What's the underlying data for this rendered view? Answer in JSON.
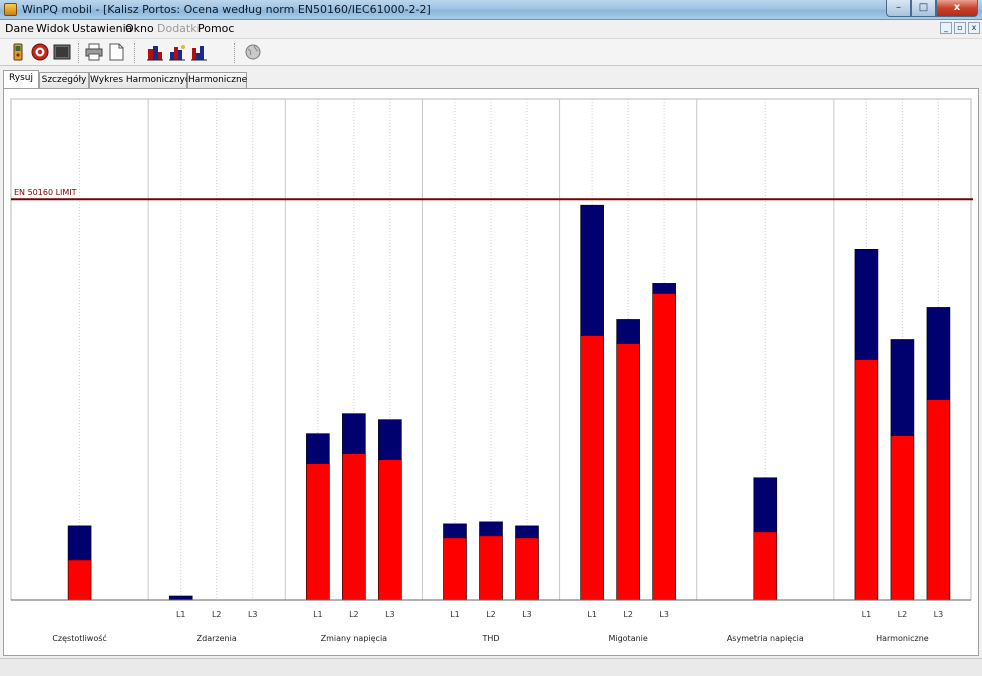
{
  "window": {
    "title": "WinPQ mobil - [Kalisz Portos: Ocena według norm EN50160/IEC61000-2-2]",
    "minimize_label": "–",
    "maximize_label": "□",
    "close_label": "x"
  },
  "menu": {
    "items": [
      {
        "label": "Dane",
        "enabled": true
      },
      {
        "label": "Widok",
        "enabled": true
      },
      {
        "label": "Ustawienia",
        "enabled": true
      },
      {
        "label": "Okno",
        "enabled": true
      },
      {
        "label": "Dodatki",
        "enabled": false
      },
      {
        "label": "Pomoc",
        "enabled": true
      }
    ],
    "mdi_minimize": "_",
    "mdi_restore": "▫",
    "mdi_close": "x"
  },
  "toolbar": {
    "icons": [
      "device-icon",
      "record-icon",
      "monitor-icon",
      "print-icon",
      "page-icon",
      "bar-chart-icon",
      "bar-chart-2-icon",
      "bar-chart-3-icon",
      "globe-icon"
    ]
  },
  "tabs": [
    {
      "label": "Rysuj",
      "active": true
    },
    {
      "label": "Szczegóły",
      "active": false
    },
    {
      "label": "Wykres Harmonicznych",
      "active": false
    },
    {
      "label": "Harmoniczne",
      "active": false
    }
  ],
  "chart_data": {
    "type": "bar",
    "stacked": true,
    "limit_label": "EN 50160 LIMIT",
    "limit_value": 100,
    "ylim": [
      0,
      125
    ],
    "colors": {
      "lower": "#ff0000",
      "upper": "#00006e",
      "limit": "#7a0000",
      "grid": "#c8c8c8"
    },
    "groups": [
      {
        "name": "Częstotliwość",
        "phases": [
          ""
        ],
        "bars": [
          {
            "label": "",
            "red": 10,
            "blue": 8.5
          }
        ]
      },
      {
        "name": "Zdarzenia",
        "phases": [
          "L1",
          "L2",
          "L3"
        ],
        "bars": [
          {
            "label": "L1",
            "red": 0,
            "blue": 1
          },
          {
            "label": "L2",
            "red": 0,
            "blue": 0
          },
          {
            "label": "L3",
            "red": 0,
            "blue": 0
          }
        ]
      },
      {
        "name": "Zmiany napięcia",
        "phases": [
          "L1",
          "L2",
          "L3"
        ],
        "bars": [
          {
            "label": "L1",
            "red": 34,
            "blue": 7.5
          },
          {
            "label": "L2",
            "red": 36.5,
            "blue": 10
          },
          {
            "label": "L3",
            "red": 35,
            "blue": 10
          }
        ]
      },
      {
        "name": "THD",
        "phases": [
          "L1",
          "L2",
          "L3"
        ],
        "bars": [
          {
            "label": "L1",
            "red": 15.5,
            "blue": 3.5
          },
          {
            "label": "L2",
            "red": 16,
            "blue": 3.5
          },
          {
            "label": "L3",
            "red": 15.5,
            "blue": 3
          }
        ]
      },
      {
        "name": "Migotanie",
        "phases": [
          "L1",
          "L2",
          "L3"
        ],
        "bars": [
          {
            "label": "L1",
            "red": 66,
            "blue": 32.5
          },
          {
            "label": "L2",
            "red": 64,
            "blue": 6
          },
          {
            "label": "L3",
            "red": 76.5,
            "blue": 2.5
          }
        ]
      },
      {
        "name": "Asymetria napięcia",
        "phases": [
          ""
        ],
        "bars": [
          {
            "label": "",
            "red": 17,
            "blue": 13.5
          }
        ]
      },
      {
        "name": "Harmoniczne",
        "phases": [
          "L1",
          "L2",
          "L3"
        ],
        "bars": [
          {
            "label": "L1",
            "red": 60,
            "blue": 27.5
          },
          {
            "label": "L2",
            "red": 41,
            "blue": 24
          },
          {
            "label": "L3",
            "red": 50,
            "blue": 23
          }
        ]
      }
    ]
  }
}
